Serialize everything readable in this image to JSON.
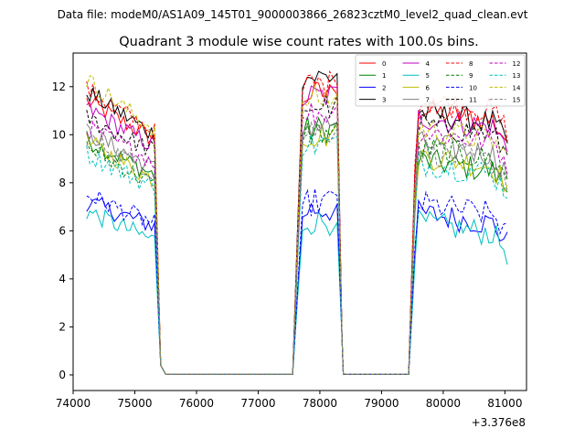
{
  "header_text": "Data file: modeM0/AS1A09_145T01_9000003866_26823cztM0_level2_quad_clean.evt",
  "chart_data": {
    "type": "line",
    "title": "Quadrant 3 module wise count rates with 100.0s bins.",
    "xlabel": "",
    "ylabel": "",
    "x_offset_label": "+3.376e8",
    "xlim": [
      74000,
      81350
    ],
    "ylim": [
      -0.65,
      13.4
    ],
    "x_ticks": [
      74000,
      75000,
      76000,
      77000,
      78000,
      79000,
      80000,
      81000
    ],
    "x_tick_labels": [
      "74000",
      "75000",
      "76000",
      "77000",
      "78000",
      "79000",
      "80000",
      "81000"
    ],
    "y_ticks": [
      0,
      2,
      4,
      6,
      8,
      10,
      12
    ],
    "y_tick_labels": [
      "0",
      "2",
      "4",
      "6",
      "8",
      "10",
      "12"
    ],
    "grid": false,
    "legend_position": "top-right",
    "segments": [
      {
        "x_start": 74220,
        "x_end": 75420
      },
      {
        "x_start": 77560,
        "x_end": 78360
      },
      {
        "x_start": 79440,
        "x_end": 81040
      }
    ],
    "series": [
      {
        "name": "0",
        "color": "#ff0000",
        "dashed": false,
        "levels": [
          11.4,
          9.8,
          11.7,
          10.5
        ]
      },
      {
        "name": "1",
        "color": "#008000",
        "dashed": false,
        "levels": [
          9.8,
          8.3,
          10.2,
          8.4
        ]
      },
      {
        "name": "2",
        "color": "#0000ff",
        "dashed": false,
        "levels": [
          7.2,
          6.2,
          6.9,
          6.2
        ]
      },
      {
        "name": "3",
        "color": "#000000",
        "dashed": false,
        "levels": [
          11.8,
          10.0,
          12.4,
          10.4
        ]
      },
      {
        "name": "4",
        "color": "#bf00bf",
        "dashed": false,
        "levels": [
          11.1,
          9.5,
          11.6,
          10.2
        ]
      },
      {
        "name": "5",
        "color": "#00bfbf",
        "dashed": false,
        "levels": [
          6.8,
          5.6,
          6.4,
          5.8
        ]
      },
      {
        "name": "6",
        "color": "#bfbf00",
        "dashed": false,
        "levels": [
          9.7,
          8.1,
          10.0,
          8.6
        ]
      },
      {
        "name": "7",
        "color": "#808080",
        "dashed": false,
        "levels": [
          10.1,
          8.6,
          10.4,
          9.1
        ]
      },
      {
        "name": "8",
        "color": "#ff0000",
        "dashed": true,
        "levels": [
          11.9,
          10.1,
          12.1,
          10.9
        ]
      },
      {
        "name": "9",
        "color": "#008000",
        "dashed": true,
        "levels": [
          9.5,
          7.9,
          10.1,
          8.9
        ]
      },
      {
        "name": "10",
        "color": "#0000ff",
        "dashed": true,
        "levels": [
          7.5,
          6.3,
          7.2,
          6.6
        ]
      },
      {
        "name": "11",
        "color": "#000000",
        "dashed": true,
        "levels": [
          10.7,
          9.3,
          11.2,
          9.9
        ]
      },
      {
        "name": "12",
        "color": "#bf00bf",
        "dashed": true,
        "levels": [
          10.3,
          8.9,
          10.9,
          9.6
        ]
      },
      {
        "name": "13",
        "color": "#00bfbf",
        "dashed": true,
        "levels": [
          9.2,
          7.8,
          9.6,
          8.3
        ]
      },
      {
        "name": "14",
        "color": "#bfbf00",
        "dashed": true,
        "levels": [
          12.3,
          10.2,
          11.5,
          9.7
        ]
      },
      {
        "name": "15",
        "color": "#808080",
        "dashed": true,
        "levels": [
          9.9,
          8.4,
          10.2,
          8.8
        ]
      }
    ]
  }
}
